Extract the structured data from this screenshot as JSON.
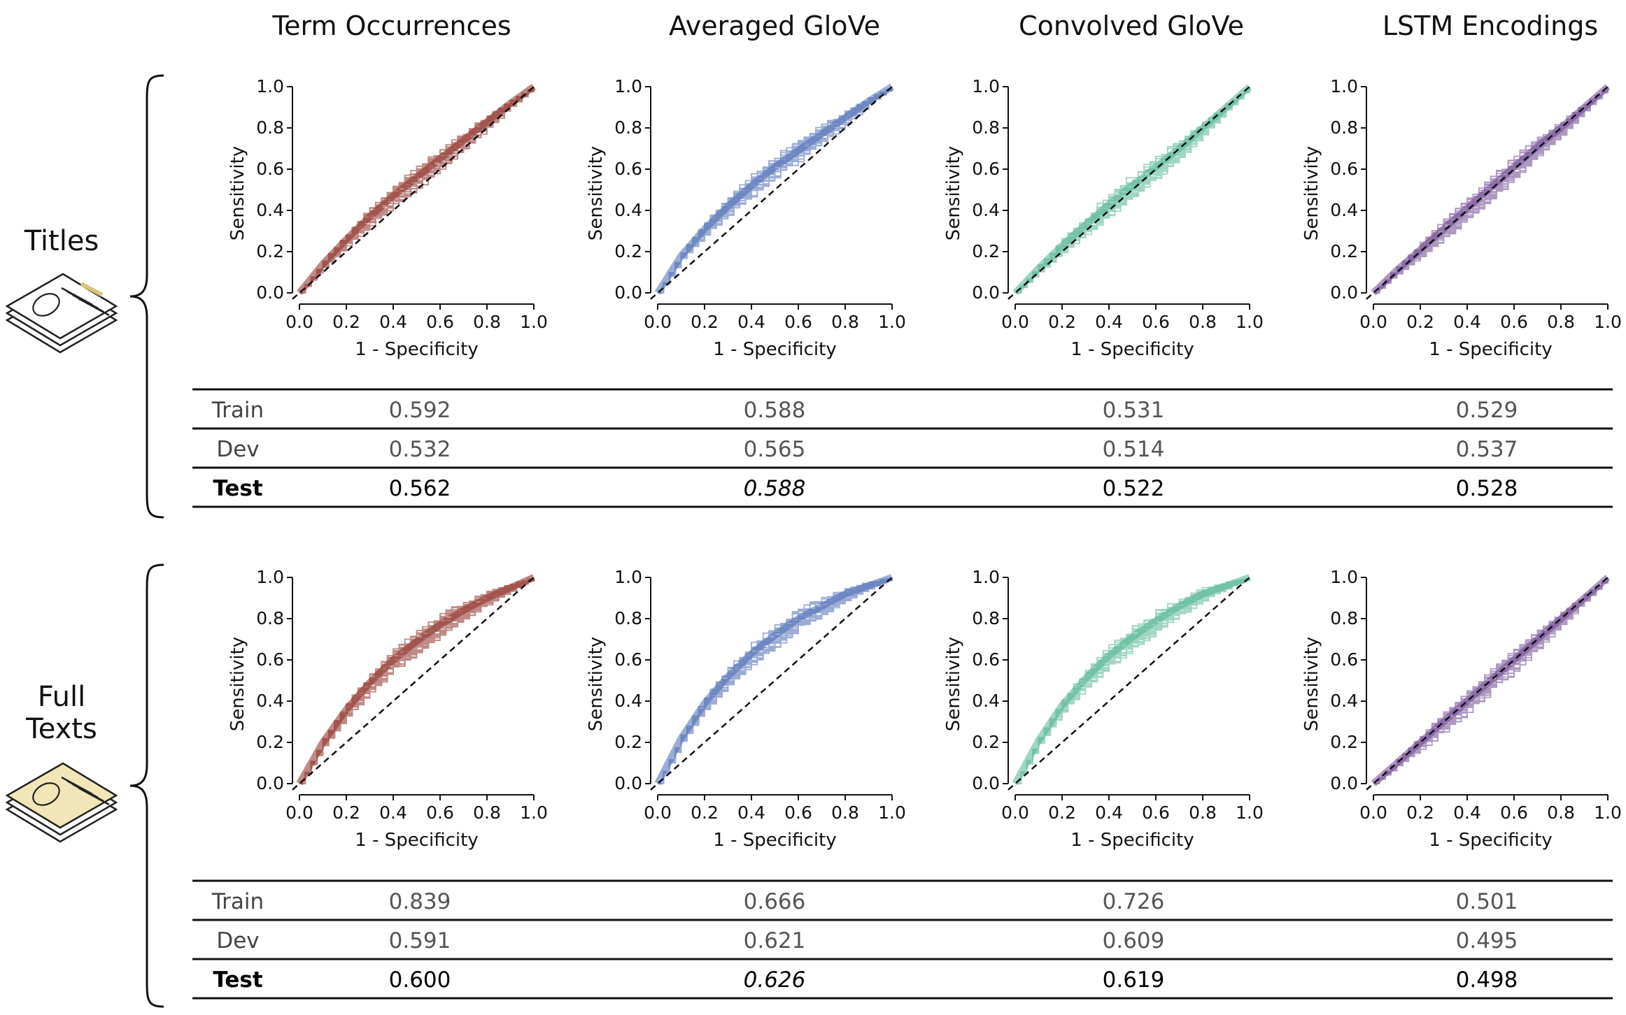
{
  "columns": [
    "Term Occurrences",
    "Averaged GloVe",
    "Convolved GloVe",
    "LSTM Encodings"
  ],
  "column_colors": [
    "#8b2a22",
    "#4a69b4",
    "#4fb590",
    "#6e4691"
  ],
  "rows": [
    "Titles",
    "Full Texts"
  ],
  "row_title_lines": [
    [
      "Titles"
    ],
    [
      "Full",
      "Texts"
    ]
  ],
  "table_row_labels": [
    "Train",
    "Dev",
    "Test"
  ],
  "chart_data": [
    {
      "type": "line",
      "row": "Titles",
      "column": "Term Occurrences",
      "xlabel": "1 - Specificity",
      "ylabel": "Sensitivity",
      "xlim": [
        0,
        1
      ],
      "ylim": [
        0,
        1
      ],
      "xticks": [
        "0.0",
        "0.2",
        "0.4",
        "0.6",
        "0.8",
        "1.0"
      ],
      "yticks": [
        "0.0",
        "0.2",
        "0.4",
        "0.6",
        "0.8",
        "1.0"
      ],
      "grid": false,
      "series_color": "#8b2a22",
      "curve": {
        "x": [
          0,
          0.1,
          0.2,
          0.3,
          0.4,
          0.5,
          0.6,
          0.7,
          0.8,
          0.9,
          1.0
        ],
        "y": [
          0,
          0.14,
          0.26,
          0.37,
          0.47,
          0.56,
          0.65,
          0.74,
          0.83,
          0.92,
          1.0
        ]
      },
      "reference_line": {
        "x": [
          0,
          1
        ],
        "y": [
          0,
          1
        ],
        "style": "dashed"
      }
    },
    {
      "type": "line",
      "row": "Titles",
      "column": "Averaged GloVe",
      "xlabel": "1 - Specificity",
      "ylabel": "Sensitivity",
      "xlim": [
        0,
        1
      ],
      "ylim": [
        0,
        1
      ],
      "xticks": [
        "0.0",
        "0.2",
        "0.4",
        "0.6",
        "0.8",
        "1.0"
      ],
      "yticks": [
        "0.0",
        "0.2",
        "0.4",
        "0.6",
        "0.8",
        "1.0"
      ],
      "grid": false,
      "series_color": "#4a69b4",
      "curve": {
        "x": [
          0,
          0.1,
          0.2,
          0.3,
          0.4,
          0.5,
          0.6,
          0.7,
          0.8,
          0.9,
          1.0
        ],
        "y": [
          0,
          0.18,
          0.31,
          0.42,
          0.52,
          0.61,
          0.69,
          0.77,
          0.85,
          0.93,
          1.0
        ]
      },
      "reference_line": {
        "x": [
          0,
          1
        ],
        "y": [
          0,
          1
        ],
        "style": "dashed"
      }
    },
    {
      "type": "line",
      "row": "Titles",
      "column": "Convolved GloVe",
      "xlabel": "1 - Specificity",
      "ylabel": "Sensitivity",
      "xlim": [
        0,
        1
      ],
      "ylim": [
        0,
        1
      ],
      "xticks": [
        "0.0",
        "0.2",
        "0.4",
        "0.6",
        "0.8",
        "1.0"
      ],
      "yticks": [
        "0.0",
        "0.2",
        "0.4",
        "0.6",
        "0.8",
        "1.0"
      ],
      "grid": false,
      "series_color": "#4fb590",
      "curve": {
        "x": [
          0,
          0.1,
          0.2,
          0.3,
          0.4,
          0.5,
          0.6,
          0.7,
          0.8,
          0.9,
          1.0
        ],
        "y": [
          0,
          0.12,
          0.23,
          0.33,
          0.43,
          0.52,
          0.61,
          0.7,
          0.8,
          0.9,
          1.0
        ]
      },
      "reference_line": {
        "x": [
          0,
          1
        ],
        "y": [
          0,
          1
        ],
        "style": "dashed"
      }
    },
    {
      "type": "line",
      "row": "Titles",
      "column": "LSTM Encodings",
      "xlabel": "1 - Specificity",
      "ylabel": "Sensitivity",
      "xlim": [
        0,
        1
      ],
      "ylim": [
        0,
        1
      ],
      "xticks": [
        "0.0",
        "0.2",
        "0.4",
        "0.6",
        "0.8",
        "1.0"
      ],
      "yticks": [
        "0.0",
        "0.2",
        "0.4",
        "0.6",
        "0.8",
        "1.0"
      ],
      "grid": false,
      "series_color": "#6e4691",
      "curve": {
        "x": [
          0,
          0.1,
          0.2,
          0.3,
          0.4,
          0.5,
          0.6,
          0.7,
          0.8,
          0.9,
          1.0
        ],
        "y": [
          0,
          0.11,
          0.21,
          0.31,
          0.41,
          0.51,
          0.61,
          0.71,
          0.8,
          0.9,
          1.0
        ]
      },
      "reference_line": {
        "x": [
          0,
          1
        ],
        "y": [
          0,
          1
        ],
        "style": "dashed"
      }
    },
    {
      "type": "line",
      "row": "Full Texts",
      "column": "Term Occurrences",
      "xlabel": "1 - Specificity",
      "ylabel": "Sensitivity",
      "xlim": [
        0,
        1
      ],
      "ylim": [
        0,
        1
      ],
      "xticks": [
        "0.0",
        "0.2",
        "0.4",
        "0.6",
        "0.8",
        "1.0"
      ],
      "yticks": [
        "0.0",
        "0.2",
        "0.4",
        "0.6",
        "0.8",
        "1.0"
      ],
      "grid": false,
      "series_color": "#8b2a22",
      "curve": {
        "x": [
          0,
          0.1,
          0.2,
          0.3,
          0.4,
          0.5,
          0.6,
          0.7,
          0.8,
          0.9,
          1.0
        ],
        "y": [
          0,
          0.2,
          0.36,
          0.49,
          0.6,
          0.69,
          0.77,
          0.84,
          0.9,
          0.95,
          1.0
        ]
      },
      "reference_line": {
        "x": [
          0,
          1
        ],
        "y": [
          0,
          1
        ],
        "style": "dashed"
      }
    },
    {
      "type": "line",
      "row": "Full Texts",
      "column": "Averaged GloVe",
      "xlabel": "1 - Specificity",
      "ylabel": "Sensitivity",
      "xlim": [
        0,
        1
      ],
      "ylim": [
        0,
        1
      ],
      "xticks": [
        "0.0",
        "0.2",
        "0.4",
        "0.6",
        "0.8",
        "1.0"
      ],
      "yticks": [
        "0.0",
        "0.2",
        "0.4",
        "0.6",
        "0.8",
        "1.0"
      ],
      "grid": false,
      "series_color": "#4a69b4",
      "curve": {
        "x": [
          0,
          0.1,
          0.2,
          0.3,
          0.4,
          0.5,
          0.6,
          0.7,
          0.8,
          0.9,
          1.0
        ],
        "y": [
          0,
          0.22,
          0.39,
          0.52,
          0.63,
          0.72,
          0.8,
          0.86,
          0.92,
          0.96,
          1.0
        ]
      },
      "reference_line": {
        "x": [
          0,
          1
        ],
        "y": [
          0,
          1
        ],
        "style": "dashed"
      }
    },
    {
      "type": "line",
      "row": "Full Texts",
      "column": "Convolved GloVe",
      "xlabel": "1 - Specificity",
      "ylabel": "Sensitivity",
      "xlim": [
        0,
        1
      ],
      "ylim": [
        0,
        1
      ],
      "xticks": [
        "0.0",
        "0.2",
        "0.4",
        "0.6",
        "0.8",
        "1.0"
      ],
      "yticks": [
        "0.0",
        "0.2",
        "0.4",
        "0.6",
        "0.8",
        "1.0"
      ],
      "grid": false,
      "series_color": "#4fb590",
      "curve": {
        "x": [
          0,
          0.1,
          0.2,
          0.3,
          0.4,
          0.5,
          0.6,
          0.7,
          0.8,
          0.9,
          1.0
        ],
        "y": [
          0,
          0.21,
          0.38,
          0.51,
          0.62,
          0.71,
          0.79,
          0.86,
          0.92,
          0.96,
          1.0
        ]
      },
      "reference_line": {
        "x": [
          0,
          1
        ],
        "y": [
          0,
          1
        ],
        "style": "dashed"
      }
    },
    {
      "type": "line",
      "row": "Full Texts",
      "column": "LSTM Encodings",
      "xlabel": "1 - Specificity",
      "ylabel": "Sensitivity",
      "xlim": [
        0,
        1
      ],
      "ylim": [
        0,
        1
      ],
      "xticks": [
        "0.0",
        "0.2",
        "0.4",
        "0.6",
        "0.8",
        "1.0"
      ],
      "yticks": [
        "0.0",
        "0.2",
        "0.4",
        "0.6",
        "0.8",
        "1.0"
      ],
      "grid": false,
      "series_color": "#6e4691",
      "curve": {
        "x": [
          0,
          0.1,
          0.2,
          0.3,
          0.4,
          0.5,
          0.6,
          0.7,
          0.8,
          0.9,
          1.0
        ],
        "y": [
          0,
          0.1,
          0.2,
          0.3,
          0.4,
          0.5,
          0.6,
          0.7,
          0.8,
          0.9,
          1.0
        ]
      },
      "reference_line": {
        "x": [
          0,
          1
        ],
        "y": [
          0,
          1
        ],
        "style": "dashed"
      }
    },
    {
      "type": "table",
      "row": "Titles",
      "columns": [
        "Term Occurrences",
        "Averaged GloVe",
        "Convolved GloVe",
        "LSTM Encodings"
      ],
      "rows": [
        {
          "label": "Train",
          "values": [
            "0.592",
            "0.588",
            "0.531",
            "0.529"
          ]
        },
        {
          "label": "Dev",
          "values": [
            "0.532",
            "0.565",
            "0.514",
            "0.537"
          ]
        },
        {
          "label": "Test",
          "values": [
            "0.562",
            "0.588",
            "0.522",
            "0.528"
          ],
          "italic": [
            false,
            true,
            false,
            false
          ]
        }
      ]
    },
    {
      "type": "table",
      "row": "Full Texts",
      "columns": [
        "Term Occurrences",
        "Averaged GloVe",
        "Convolved GloVe",
        "LSTM Encodings"
      ],
      "rows": [
        {
          "label": "Train",
          "values": [
            "0.839",
            "0.666",
            "0.726",
            "0.501"
          ]
        },
        {
          "label": "Dev",
          "values": [
            "0.591",
            "0.621",
            "0.609",
            "0.495"
          ]
        },
        {
          "label": "Test",
          "values": [
            "0.600",
            "0.626",
            "0.619",
            "0.498"
          ],
          "italic": [
            false,
            true,
            false,
            false
          ]
        }
      ]
    }
  ]
}
